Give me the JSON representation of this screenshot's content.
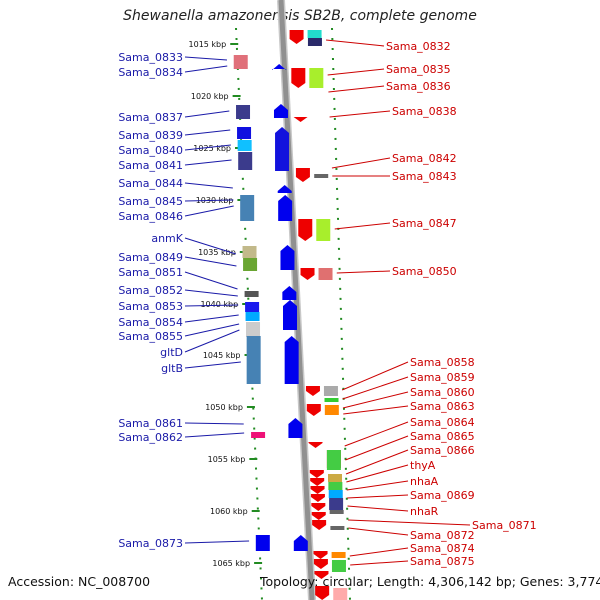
{
  "title": "Shewanella amazonensis SB2B, complete genome",
  "accession": "Accession: NC_008700",
  "topology": "Topology: circular; Length: 4,306,142 bp; Genes: 3,774",
  "colors": {
    "forward": "#0000ee",
    "reverse": "#ee0000",
    "backbone": "#909090",
    "ticks": "#228b22",
    "left_label": "#1a1aa8",
    "right_label": "#cc0000"
  },
  "kbp_ticks": [
    "1015 kbp",
    "1020 kbp",
    "1025 kbp",
    "1030 kbp",
    "1035 kbp",
    "1040 kbp",
    "1045 kbp",
    "1050 kbp",
    "1055 kbp",
    "1060 kbp",
    "1065 kbp"
  ],
  "left_labels": [
    "Sama_0833",
    "Sama_0834",
    "Sama_0837",
    "Sama_0839",
    "Sama_0840",
    "Sama_0841",
    "Sama_0844",
    "Sama_0845",
    "Sama_0846",
    "anmK",
    "Sama_0849",
    "Sama_0851",
    "Sama_0852",
    "Sama_0853",
    "Sama_0854",
    "Sama_0855",
    "gltD",
    "gltB",
    "Sama_0861",
    "Sama_0862",
    "Sama_0873"
  ],
  "right_labels": [
    "Sama_0832",
    "Sama_0835",
    "Sama_0836",
    "Sama_0838",
    "Sama_0842",
    "Sama_0843",
    "Sama_0847",
    "Sama_0850",
    "Sama_0858",
    "Sama_0859",
    "Sama_0860",
    "Sama_0863",
    "Sama_0864",
    "Sama_0865",
    "Sama_0866",
    "thyA",
    "nhaA",
    "Sama_0869",
    "nhaR",
    "Sama_0871",
    "Sama_0872",
    "Sama_0874",
    "Sama_0875"
  ]
}
